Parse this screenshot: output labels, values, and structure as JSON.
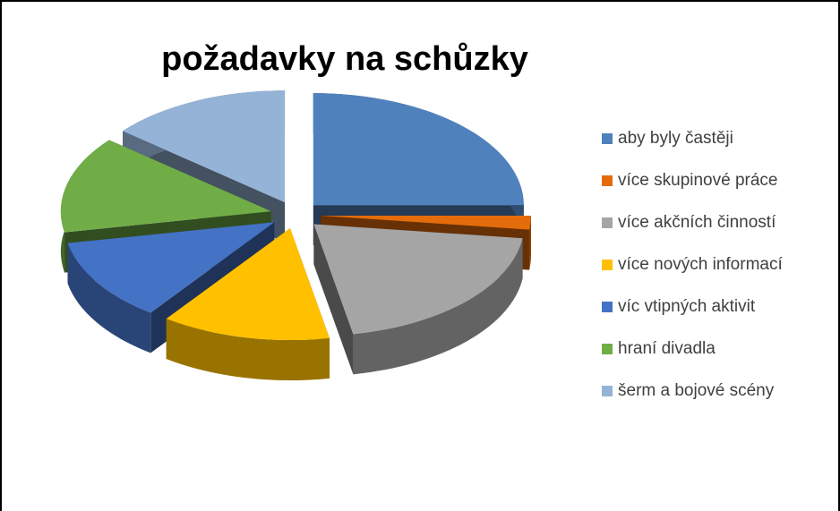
{
  "chart_data": {
    "type": "pie",
    "title": "požadavky na schůzky",
    "categories": [
      "aby byly častěji",
      "více skupinové práce",
      "více akčních činností",
      "více nových informací",
      "víc vtipných aktivit",
      "hraní divadla",
      "šerm a bojové scény"
    ],
    "values": [
      25,
      2,
      20,
      13,
      12,
      14,
      14
    ],
    "colors": [
      "#4f81bd",
      "#e46c0a",
      "#a5a5a5",
      "#ffc000",
      "#4472c4",
      "#70ad47",
      "#95b3d7"
    ],
    "legend": "right"
  }
}
